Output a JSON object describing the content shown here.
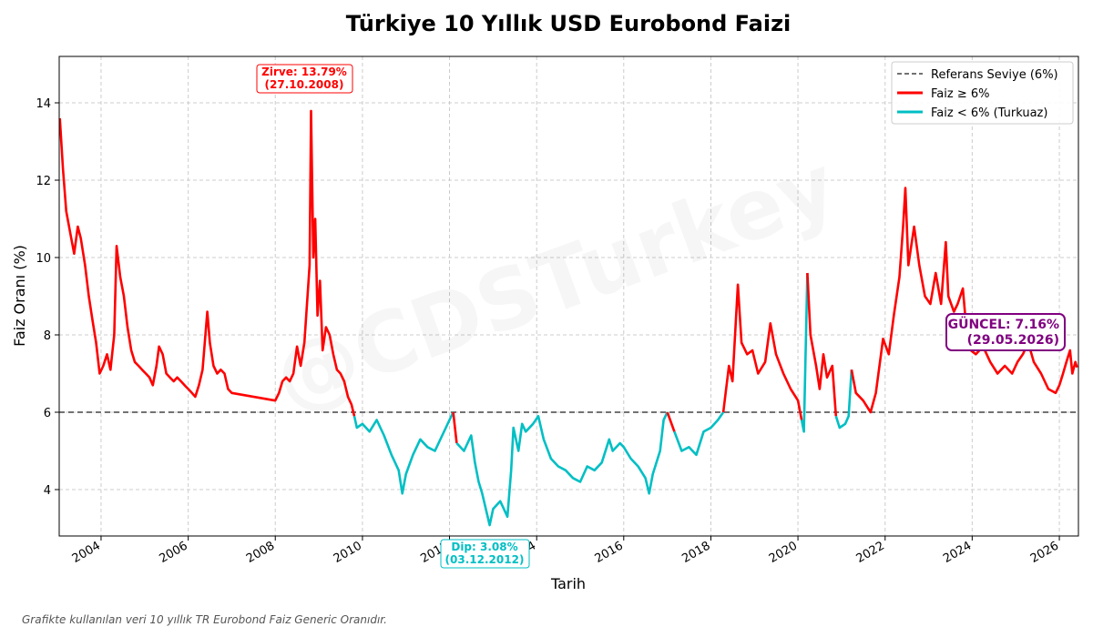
{
  "chart_data": {
    "type": "line",
    "title": "Türkiye 10 Yıllık USD Eurobond Faizi",
    "xlabel": "Tarih",
    "ylabel": "Faiz Oranı (%)",
    "xlim": [
      "2003-01-15",
      "2026-06-10"
    ],
    "ylim": [
      2.8,
      15.2
    ],
    "x_ticks": [
      "2004",
      "2006",
      "2008",
      "2010",
      "2012",
      "2014",
      "2016",
      "2018",
      "2020",
      "2022",
      "2024",
      "2026"
    ],
    "y_ticks": [
      4,
      6,
      8,
      10,
      12,
      14
    ],
    "grid": true,
    "legend_position": "top-right",
    "threshold": 6,
    "colors": {
      "above": "#ff0000",
      "below": "#00bfc4",
      "reference": "#444444",
      "current": "#800080"
    },
    "legend": {
      "reference": "Referans Seviye (6%)",
      "above": "Faiz ≥ 6%",
      "below": "Faiz < 6% (Turkuaz)"
    },
    "series": [
      {
        "values": [
          [
            "2003-01-20",
            13.6
          ],
          [
            "2003-02-15",
            12.3
          ],
          [
            "2003-03-15",
            11.2
          ],
          [
            "2003-04-20",
            10.6
          ],
          [
            "2003-05-20",
            10.1
          ],
          [
            "2003-06-20",
            10.8
          ],
          [
            "2003-07-15",
            10.5
          ],
          [
            "2003-08-20",
            9.8
          ],
          [
            "2003-09-20",
            9.0
          ],
          [
            "2003-10-20",
            8.4
          ],
          [
            "2003-11-20",
            7.8
          ],
          [
            "2003-12-20",
            7.0
          ],
          [
            "2004-01-20",
            7.2
          ],
          [
            "2004-02-20",
            7.5
          ],
          [
            "2004-03-20",
            7.1
          ],
          [
            "2004-04-20",
            8.0
          ],
          [
            "2004-05-10",
            10.3
          ],
          [
            "2004-06-10",
            9.5
          ],
          [
            "2004-07-10",
            9.0
          ],
          [
            "2004-08-10",
            8.2
          ],
          [
            "2004-09-10",
            7.6
          ],
          [
            "2004-10-10",
            7.3
          ],
          [
            "2004-11-10",
            7.2
          ],
          [
            "2004-12-10",
            7.1
          ],
          [
            "2005-01-10",
            7.0
          ],
          [
            "2005-02-10",
            6.9
          ],
          [
            "2005-03-10",
            6.7
          ],
          [
            "2005-04-10",
            7.2
          ],
          [
            "2005-05-01",
            7.7
          ],
          [
            "2005-06-01",
            7.5
          ],
          [
            "2005-07-01",
            7.0
          ],
          [
            "2005-08-01",
            6.9
          ],
          [
            "2005-09-01",
            6.8
          ],
          [
            "2005-10-01",
            6.9
          ],
          [
            "2005-11-01",
            6.8
          ],
          [
            "2005-12-01",
            6.7
          ],
          [
            "2006-01-01",
            6.6
          ],
          [
            "2006-02-01",
            6.5
          ],
          [
            "2006-03-01",
            6.4
          ],
          [
            "2006-04-01",
            6.7
          ],
          [
            "2006-05-01",
            7.1
          ],
          [
            "2006-06-10",
            8.6
          ],
          [
            "2006-07-01",
            7.8
          ],
          [
            "2006-08-01",
            7.2
          ],
          [
            "2006-09-01",
            7.0
          ],
          [
            "2006-10-01",
            7.1
          ],
          [
            "2006-11-01",
            7.0
          ],
          [
            "2006-12-01",
            6.6
          ],
          [
            "2007-01-01",
            6.5
          ],
          [
            "2008-01-01",
            6.3
          ],
          [
            "2008-02-01",
            6.5
          ],
          [
            "2008-03-01",
            6.8
          ],
          [
            "2008-04-01",
            6.9
          ],
          [
            "2008-05-01",
            6.8
          ],
          [
            "2008-06-01",
            7.0
          ],
          [
            "2008-07-01",
            7.7
          ],
          [
            "2008-08-01",
            7.2
          ],
          [
            "2008-09-01",
            7.8
          ],
          [
            "2008-10-15",
            9.8
          ],
          [
            "2008-10-27",
            13.79
          ],
          [
            "2008-11-15",
            10.0
          ],
          [
            "2008-12-01",
            11.0
          ],
          [
            "2008-12-20",
            8.5
          ],
          [
            "2009-01-10",
            9.4
          ],
          [
            "2009-02-01",
            7.6
          ],
          [
            "2009-03-01",
            8.2
          ],
          [
            "2009-04-01",
            8.0
          ],
          [
            "2009-05-01",
            7.5
          ],
          [
            "2009-06-01",
            7.1
          ],
          [
            "2009-07-01",
            7.0
          ],
          [
            "2009-08-01",
            6.8
          ],
          [
            "2009-09-01",
            6.4
          ],
          [
            "2009-10-01",
            6.2
          ],
          [
            "2009-10-25",
            5.9
          ],
          [
            "2009-11-15",
            5.6
          ],
          [
            "2010-01-01",
            5.7
          ],
          [
            "2010-03-01",
            5.5
          ],
          [
            "2010-05-01",
            5.8
          ],
          [
            "2010-07-01",
            5.4
          ],
          [
            "2010-09-01",
            4.9
          ],
          [
            "2010-11-01",
            4.5
          ],
          [
            "2010-12-01",
            3.9
          ],
          [
            "2011-01-01",
            4.4
          ],
          [
            "2011-03-01",
            4.9
          ],
          [
            "2011-05-01",
            5.3
          ],
          [
            "2011-07-01",
            5.1
          ],
          [
            "2011-09-01",
            5.0
          ],
          [
            "2011-11-01",
            5.4
          ],
          [
            "2012-01-01",
            5.8
          ],
          [
            "2012-02-01",
            6.0
          ],
          [
            "2012-03-01",
            5.2
          ],
          [
            "2012-05-01",
            5.0
          ],
          [
            "2012-07-01",
            5.4
          ],
          [
            "2012-08-01",
            4.7
          ],
          [
            "2012-09-01",
            4.2
          ],
          [
            "2012-10-01",
            3.9
          ],
          [
            "2012-11-01",
            3.5
          ],
          [
            "2012-12-03",
            3.08
          ],
          [
            "2013-01-01",
            3.5
          ],
          [
            "2013-03-01",
            3.7
          ],
          [
            "2013-04-01",
            3.5
          ],
          [
            "2013-05-01",
            3.3
          ],
          [
            "2013-06-01",
            4.5
          ],
          [
            "2013-06-20",
            5.6
          ],
          [
            "2013-08-01",
            5.0
          ],
          [
            "2013-09-01",
            5.7
          ],
          [
            "2013-10-01",
            5.5
          ],
          [
            "2013-12-01",
            5.7
          ],
          [
            "2014-01-15",
            5.9
          ],
          [
            "2014-03-01",
            5.3
          ],
          [
            "2014-05-01",
            4.8
          ],
          [
            "2014-07-01",
            4.6
          ],
          [
            "2014-09-01",
            4.5
          ],
          [
            "2014-11-01",
            4.3
          ],
          [
            "2015-01-01",
            4.2
          ],
          [
            "2015-03-01",
            4.6
          ],
          [
            "2015-05-01",
            4.5
          ],
          [
            "2015-07-01",
            4.7
          ],
          [
            "2015-09-01",
            5.3
          ],
          [
            "2015-10-01",
            5.0
          ],
          [
            "2015-12-01",
            5.2
          ],
          [
            "2016-01-01",
            5.1
          ],
          [
            "2016-03-01",
            4.8
          ],
          [
            "2016-05-01",
            4.6
          ],
          [
            "2016-07-01",
            4.3
          ],
          [
            "2016-08-01",
            3.9
          ],
          [
            "2016-09-01",
            4.4
          ],
          [
            "2016-11-01",
            5.0
          ],
          [
            "2016-12-01",
            5.8
          ],
          [
            "2017-01-01",
            6.0
          ],
          [
            "2017-03-01",
            5.5
          ],
          [
            "2017-05-01",
            5.0
          ],
          [
            "2017-07-01",
            5.1
          ],
          [
            "2017-09-01",
            4.9
          ],
          [
            "2017-11-01",
            5.5
          ],
          [
            "2018-01-01",
            5.6
          ],
          [
            "2018-03-01",
            5.8
          ],
          [
            "2018-04-15",
            6.0
          ],
          [
            "2018-06-01",
            7.2
          ],
          [
            "2018-07-01",
            6.8
          ],
          [
            "2018-08-15",
            9.3
          ],
          [
            "2018-09-15",
            7.8
          ],
          [
            "2018-11-01",
            7.5
          ],
          [
            "2018-12-15",
            7.6
          ],
          [
            "2019-02-01",
            7.0
          ],
          [
            "2019-04-01",
            7.3
          ],
          [
            "2019-05-15",
            8.3
          ],
          [
            "2019-07-01",
            7.5
          ],
          [
            "2019-09-01",
            7.0
          ],
          [
            "2019-11-01",
            6.6
          ],
          [
            "2020-01-01",
            6.3
          ],
          [
            "2020-02-01",
            5.8
          ],
          [
            "2020-02-20",
            5.5
          ],
          [
            "2020-03-20",
            9.6
          ],
          [
            "2020-04-15",
            8.0
          ],
          [
            "2020-06-01",
            7.2
          ],
          [
            "2020-07-01",
            6.6
          ],
          [
            "2020-08-01",
            7.5
          ],
          [
            "2020-09-01",
            6.9
          ],
          [
            "2020-10-15",
            7.2
          ],
          [
            "2020-11-15",
            5.9
          ],
          [
            "2020-12-15",
            5.6
          ],
          [
            "2021-02-01",
            5.7
          ],
          [
            "2021-03-01",
            5.9
          ],
          [
            "2021-03-25",
            7.1
          ],
          [
            "2021-05-01",
            6.5
          ],
          [
            "2021-07-01",
            6.3
          ],
          [
            "2021-09-01",
            6.0
          ],
          [
            "2021-10-15",
            6.5
          ],
          [
            "2021-12-15",
            7.9
          ],
          [
            "2022-02-01",
            7.5
          ],
          [
            "2022-03-15",
            8.5
          ],
          [
            "2022-05-01",
            9.5
          ],
          [
            "2022-06-01",
            10.8
          ],
          [
            "2022-06-20",
            11.8
          ],
          [
            "2022-07-15",
            9.8
          ],
          [
            "2022-09-01",
            10.8
          ],
          [
            "2022-10-15",
            9.8
          ],
          [
            "2022-12-01",
            9.0
          ],
          [
            "2023-01-15",
            8.8
          ],
          [
            "2023-03-01",
            9.6
          ],
          [
            "2023-04-15",
            8.8
          ],
          [
            "2023-05-25",
            10.4
          ],
          [
            "2023-06-15",
            9.0
          ],
          [
            "2023-08-01",
            8.6
          ],
          [
            "2023-09-01",
            8.8
          ],
          [
            "2023-10-15",
            9.2
          ],
          [
            "2023-11-15",
            8.1
          ],
          [
            "2023-12-20",
            7.6
          ],
          [
            "2024-02-01",
            7.5
          ],
          [
            "2024-04-01",
            7.7
          ],
          [
            "2024-06-01",
            7.3
          ],
          [
            "2024-08-01",
            7.0
          ],
          [
            "2024-10-01",
            7.2
          ],
          [
            "2024-12-01",
            7.0
          ],
          [
            "2025-01-15",
            7.3
          ],
          [
            "2025-03-01",
            7.5
          ],
          [
            "2025-04-15",
            7.8
          ],
          [
            "2025-06-01",
            7.3
          ],
          [
            "2025-08-01",
            7.0
          ],
          [
            "2025-10-01",
            6.6
          ],
          [
            "2025-12-01",
            6.5
          ],
          [
            "2026-01-01",
            6.7
          ],
          [
            "2026-02-01",
            7.0
          ],
          [
            "2026-03-01",
            7.3
          ],
          [
            "2026-04-01",
            7.6
          ],
          [
            "2026-04-20",
            7.0
          ],
          [
            "2026-05-15",
            7.3
          ],
          [
            "2026-05-29",
            7.16
          ]
        ]
      }
    ],
    "annotations": {
      "peak": {
        "lines": [
          "Zirve: 13.79%",
          "(27.10.2008)"
        ],
        "date": "2008-10-27",
        "value": 13.79
      },
      "trough": {
        "lines": [
          "Dip: 3.08%",
          "(03.12.2012)"
        ],
        "date": "2012-12-03",
        "value": 3.08
      },
      "current": {
        "lines": [
          "GÜNCEL: 7.16%",
          "(29.05.2026)"
        ],
        "date": "2026-05-29",
        "value": 7.16
      }
    }
  },
  "watermark": "@CDSTurkey",
  "footnote": "Grafikte kullanılan veri 10 yıllık TR Eurobond Faiz Generic Oranıdır."
}
